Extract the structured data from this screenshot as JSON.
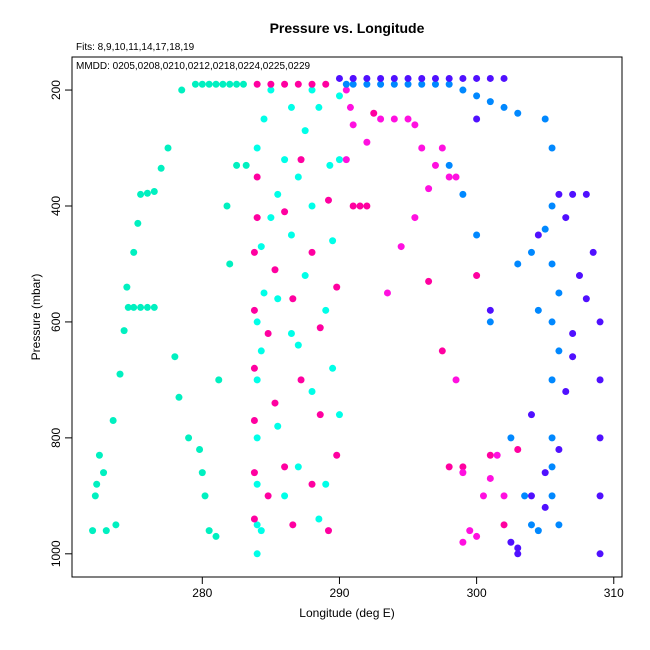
{
  "chart_data": {
    "type": "scatter",
    "title": "Pressure vs. Longitude",
    "annotations": [
      "Fits: 8,9,10,11,14,17,18,19",
      "MMDD: 0205,0208,0210,0212,0218,0224,0225,0229"
    ],
    "xlabel": "Longitude (deg E)",
    "ylabel": "Pressure (mbar)",
    "xlim": [
      270.5,
      310.6
    ],
    "xticks": [
      280,
      290,
      300,
      310
    ],
    "ylim": [
      1040,
      143
    ],
    "yticks": [
      200,
      400,
      600,
      800,
      1000
    ],
    "series": [
      {
        "color": "#00f0c0",
        "x": [
          272,
          272.2,
          272.3,
          272.5,
          272.8,
          273,
          273.5,
          273.7,
          274,
          274.3,
          274.5,
          274.6,
          275,
          275.5,
          276,
          276.5,
          275,
          275.3,
          275.5,
          276,
          276.5,
          277,
          277.5,
          278,
          278.3,
          278.5,
          279,
          279.5,
          280,
          280.5,
          281,
          281.5,
          282,
          282.5,
          283,
          279.8,
          280,
          280.2,
          280.5,
          281,
          281.2,
          282,
          282.5,
          281.8,
          283.2
        ],
        "values": [
          960,
          900,
          880,
          830,
          860,
          960,
          770,
          950,
          690,
          615,
          540,
          575,
          575,
          575,
          575,
          575,
          480,
          430,
          380,
          378,
          375,
          335,
          300,
          660,
          730,
          200,
          800,
          190,
          190,
          190,
          190,
          190,
          190,
          190,
          190,
          820,
          860,
          900,
          960,
          970,
          700,
          500,
          330,
          400,
          330
        ]
      },
      {
        "color": "#00ffe8",
        "x": [
          284,
          284,
          284,
          284,
          284,
          284,
          284,
          284.3,
          284.3,
          284.3,
          284.5,
          284.5,
          285,
          285,
          285.5,
          285.5,
          286,
          286,
          286.5,
          286.5,
          287,
          287,
          287.5,
          287.5,
          288,
          288,
          288.5,
          288.5,
          289,
          289,
          289.3,
          289.5,
          289.5,
          290,
          290,
          290,
          285.5,
          286.5,
          288,
          287
        ],
        "values": [
          1000,
          950,
          880,
          800,
          700,
          600,
          300,
          960,
          650,
          470,
          550,
          250,
          420,
          200,
          380,
          780,
          320,
          900,
          450,
          620,
          350,
          850,
          270,
          520,
          400,
          720,
          230,
          940,
          580,
          880,
          330,
          460,
          680,
          210,
          320,
          760,
          560,
          230,
          200,
          640
        ]
      },
      {
        "color": "#ff00a0",
        "x": [
          283.8,
          283.8,
          283.8,
          283.8,
          283.8,
          283.8,
          284,
          284,
          284.8,
          284.8,
          285.3,
          285.3,
          286,
          286,
          286.6,
          286.6,
          287.2,
          287.2,
          288,
          288,
          288.6,
          288.6,
          289.2,
          289.2,
          289.8,
          289.8,
          284,
          285,
          286,
          287,
          288,
          289,
          291,
          291.5,
          292,
          292.5,
          298,
          299,
          300,
          301,
          302,
          303,
          297.5,
          296.5
        ],
        "values": [
          940,
          860,
          770,
          680,
          580,
          480,
          420,
          350,
          900,
          620,
          510,
          740,
          850,
          410,
          560,
          950,
          320,
          700,
          880,
          480,
          610,
          760,
          390,
          960,
          540,
          830,
          190,
          190,
          190,
          190,
          190,
          190,
          400,
          400,
          400,
          240,
          850,
          850,
          520,
          830,
          950,
          820,
          650,
          530
        ]
      },
      {
        "color": "#ff10e0",
        "x": [
          290.5,
          291,
          292,
          293,
          294,
          295,
          295.5,
          296,
          297,
          298,
          298.5,
          299,
          299.5,
          300,
          300.5,
          301,
          293.5,
          294.5,
          295.5,
          296.5,
          297.5,
          298.5,
          290.8,
          291,
          290.5,
          299,
          301.5,
          302
        ],
        "values": [
          200,
          260,
          290,
          250,
          250,
          250,
          260,
          300,
          330,
          350,
          350,
          860,
          960,
          970,
          900,
          870,
          550,
          470,
          420,
          370,
          300,
          700,
          230,
          180,
          320,
          980,
          830,
          900
        ]
      },
      {
        "color": "#0088ff",
        "x": [
          290.5,
          291,
          292,
          293,
          294,
          295,
          296,
          297,
          298,
          299,
          300,
          301,
          302,
          303,
          304,
          305,
          305.5,
          305.5,
          305.5,
          305.5,
          305.5,
          305.5,
          305.5,
          306,
          306,
          304.5,
          304,
          303.5,
          302.5,
          301,
          300,
          299,
          298,
          305.5,
          306,
          305,
          304.5,
          303
        ],
        "values": [
          190,
          190,
          190,
          190,
          190,
          190,
          190,
          190,
          190,
          200,
          210,
          220,
          230,
          240,
          480,
          250,
          300,
          400,
          500,
          600,
          700,
          800,
          900,
          650,
          950,
          960,
          950,
          900,
          800,
          600,
          450,
          380,
          330,
          850,
          550,
          440,
          580,
          500
        ]
      },
      {
        "color": "#5010ff",
        "x": [
          290,
          291,
          292,
          293,
          294,
          295,
          296,
          297,
          298,
          299,
          300,
          301,
          302,
          303,
          304,
          305,
          306,
          307,
          308,
          308.5,
          309,
          309,
          309,
          309,
          309,
          307.5,
          307,
          306.5,
          306,
          305,
          304,
          303,
          302.5,
          301,
          300,
          308,
          307,
          306.5,
          304.5
        ],
        "values": [
          180,
          180,
          180,
          180,
          180,
          180,
          180,
          180,
          180,
          180,
          180,
          180,
          180,
          1000,
          900,
          860,
          380,
          380,
          380,
          480,
          600,
          700,
          800,
          900,
          1000,
          520,
          620,
          720,
          820,
          920,
          760,
          990,
          980,
          580,
          250,
          560,
          660,
          420,
          450
        ]
      }
    ]
  }
}
